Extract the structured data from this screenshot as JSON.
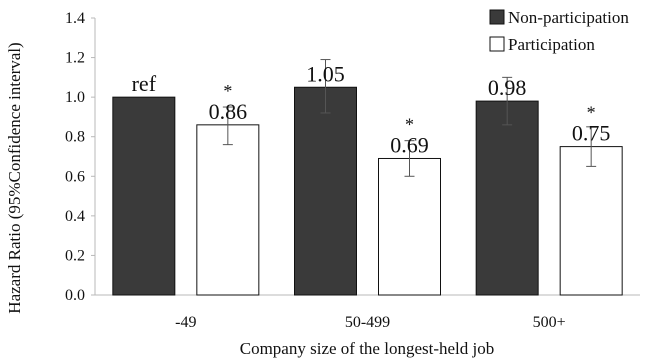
{
  "chart_data": {
    "type": "bar",
    "title": "",
    "xlabel": "Company size of the longest-held job",
    "ylabel": "Hazard Ratio (95%Confidence interval)",
    "ylim": [
      0,
      1.4
    ],
    "yticks": [
      "0.0",
      "0.2",
      "0.4",
      "0.6",
      "0.8",
      "1.0",
      "1.2",
      "1.4"
    ],
    "categories": [
      "-49",
      "50-499",
      "500+"
    ],
    "grid": false,
    "legend_position": "top-right",
    "series": [
      {
        "name": "Non-participation",
        "color": "#3a3a3a",
        "values": [
          1.0,
          1.05,
          0.98
        ],
        "ci_lower": [
          null,
          0.92,
          0.86
        ],
        "ci_upper": [
          null,
          1.19,
          1.1
        ],
        "labels": [
          "ref",
          "1.05",
          "0.98"
        ],
        "significance": [
          "",
          "",
          ""
        ]
      },
      {
        "name": "Participation",
        "color": "#ffffff",
        "values": [
          0.86,
          0.69,
          0.75
        ],
        "ci_lower": [
          0.76,
          0.6,
          0.65
        ],
        "ci_upper": [
          0.95,
          0.78,
          0.85
        ],
        "labels": [
          "0.86",
          "0.69",
          "0.75"
        ],
        "significance": [
          "*",
          "*",
          "*"
        ]
      }
    ]
  }
}
